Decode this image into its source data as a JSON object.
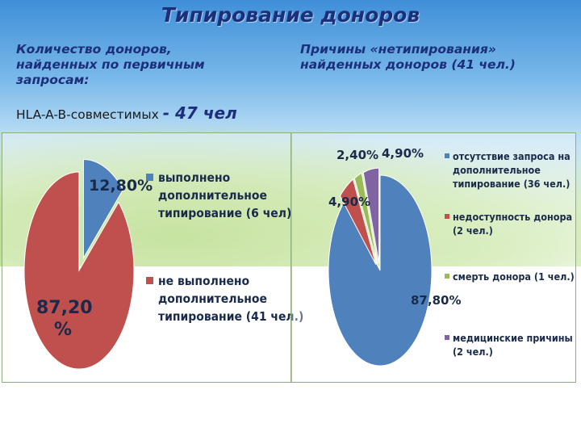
{
  "slide": {
    "title": "Типирование доноров",
    "left_heading": [
      "Количество  доноров,",
      "найденных  по первичным",
      "запросам:"
    ],
    "left_sub_prefix": "HLA-A-B-совместимых ",
    "left_sub_value": "- 47 чел",
    "right_heading": [
      "Причины «нетипирования»",
      "найденных доноров (41 чел.)"
    ]
  },
  "colors": {
    "blue": "#4f81bd",
    "red": "#c0504d",
    "green": "#9bbb59",
    "purple": "#8064a2"
  },
  "chart_data": [
    {
      "type": "pie",
      "slices": [
        {
          "label_lines": [
            "выполнено",
            "дополнительное",
            "типирование (6 чел)"
          ],
          "value": 12.8,
          "display": "12,80%",
          "color": "#4f81bd"
        },
        {
          "label_lines": [
            "не выполнено",
            "дополнительное",
            "типирование (41 чел.)"
          ],
          "value": 87.2,
          "display_lines": [
            "87,20",
            "%"
          ],
          "color": "#c0504d"
        }
      ],
      "legend_position": "right"
    },
    {
      "type": "pie",
      "slices": [
        {
          "label_lines": [
            "отсутствие запроса на",
            "дополнительное",
            "типирование (36 чел.)"
          ],
          "value": 87.8,
          "display": "87,80%",
          "color": "#4f81bd"
        },
        {
          "label_lines": [
            "недоступность донора",
            "(2 чел.)"
          ],
          "value": 4.9,
          "display": "4,90%",
          "color": "#c0504d"
        },
        {
          "label_lines": [
            "смерть донора (1 чел.)"
          ],
          "value": 2.4,
          "display": "2,40%",
          "color": "#9bbb59"
        },
        {
          "label_lines": [
            "медицинские причины",
            "(2 чел.)"
          ],
          "value": 4.9,
          "display": "4,90%",
          "color": "#8064a2"
        }
      ],
      "legend_position": "right"
    }
  ]
}
